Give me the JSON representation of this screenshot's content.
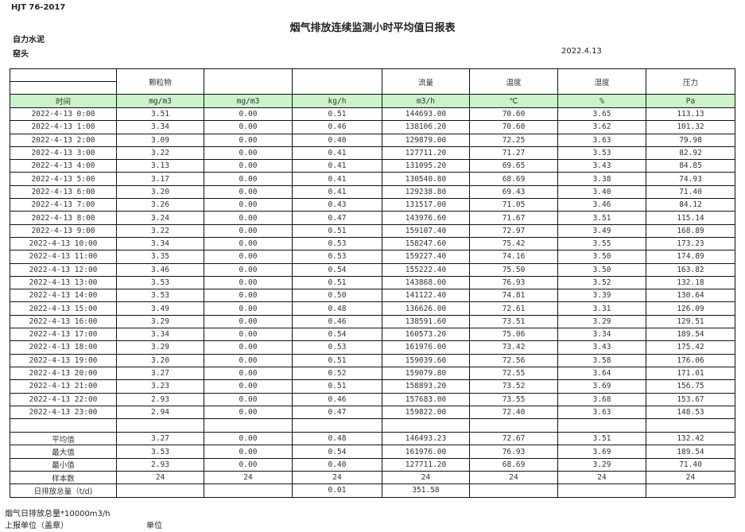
{
  "header": {
    "standard": "HJT  76-2017",
    "title": "烟气排放连续监测小时平均值日报表",
    "company": "自力水泥",
    "kiln": "窑头",
    "date": "2022.4.13"
  },
  "columns": [
    "颗粒物",
    "",
    "",
    "流量",
    "温度",
    "湿度",
    "压力"
  ],
  "units": [
    "时间",
    "mg/m3",
    "mg/m3",
    "kg/h",
    "m3/h",
    "℃",
    "%",
    "Pa"
  ],
  "rows": [
    [
      "2022-4-13 0:00",
      "3.51",
      "0.00",
      "0.51",
      "144693.00",
      "70.60",
      "3.65",
      "113.13"
    ],
    [
      "2022-4-13 1:00",
      "3.34",
      "0.00",
      "0.46",
      "138106.20",
      "70.60",
      "3.62",
      "101.32"
    ],
    [
      "2022-4-13 2:00",
      "3.09",
      "0.00",
      "0.40",
      "129879.00",
      "72.25",
      "3.63",
      "79.98"
    ],
    [
      "2022-4-13 3:00",
      "3.22",
      "0.00",
      "0.41",
      "127711.20",
      "71.27",
      "3.53",
      "82.92"
    ],
    [
      "2022-4-13 4:00",
      "3.13",
      "0.00",
      "0.41",
      "131095.20",
      "69.65",
      "3.43",
      "84.85"
    ],
    [
      "2022-4-13 5:00",
      "3.17",
      "0.00",
      "0.41",
      "130540.80",
      "68.69",
      "3.38",
      "74.93"
    ],
    [
      "2022-4-13 6:00",
      "3.20",
      "0.00",
      "0.41",
      "129238.80",
      "69.43",
      "3.40",
      "71.40"
    ],
    [
      "2022-4-13 7:00",
      "3.26",
      "0.00",
      "0.43",
      "131517.00",
      "71.05",
      "3.46",
      "84.12"
    ],
    [
      "2022-4-13 8:00",
      "3.24",
      "0.00",
      "0.47",
      "143976.60",
      "71.67",
      "3.51",
      "115.14"
    ],
    [
      "2022-4-13 9:00",
      "3.22",
      "0.00",
      "0.51",
      "159107.40",
      "72.97",
      "3.49",
      "168.89"
    ],
    [
      "2022-4-13 10:00",
      "3.34",
      "0.00",
      "0.53",
      "158247.60",
      "75.42",
      "3.55",
      "173.23"
    ],
    [
      "2022-4-13 11:00",
      "3.35",
      "0.00",
      "0.53",
      "159227.40",
      "74.16",
      "3.50",
      "174.89"
    ],
    [
      "2022-4-13 12:00",
      "3.46",
      "0.00",
      "0.54",
      "155222.40",
      "75.50",
      "3.50",
      "163.82"
    ],
    [
      "2022-4-13 13:00",
      "3.53",
      "0.00",
      "0.51",
      "143868.00",
      "76.93",
      "3.52",
      "132.18"
    ],
    [
      "2022-4-13 14:00",
      "3.53",
      "0.00",
      "0.50",
      "141122.40",
      "74.81",
      "3.39",
      "130.64"
    ],
    [
      "2022-4-13 15:00",
      "3.49",
      "0.00",
      "0.48",
      "136626.00",
      "72.61",
      "3.31",
      "126.09"
    ],
    [
      "2022-4-13 16:00",
      "3.29",
      "0.00",
      "0.46",
      "138591.60",
      "73.51",
      "3.29",
      "129.51"
    ],
    [
      "2022-4-13 17:00",
      "3.34",
      "0.00",
      "0.54",
      "160573.20",
      "75.06",
      "3.34",
      "189.54"
    ],
    [
      "2022-4-13 18:00",
      "3.29",
      "0.00",
      "0.53",
      "161976.00",
      "73.42",
      "3.43",
      "175.42"
    ],
    [
      "2022-4-13 19:00",
      "3.20",
      "0.00",
      "0.51",
      "159039.60",
      "72.56",
      "3.58",
      "176.06"
    ],
    [
      "2022-4-13 20:00",
      "3.27",
      "0.00",
      "0.52",
      "159079.80",
      "72.55",
      "3.64",
      "171.01"
    ],
    [
      "2022-4-13 21:00",
      "3.23",
      "0.00",
      "0.51",
      "158893.20",
      "73.52",
      "3.69",
      "156.75"
    ],
    [
      "2022-4-13 22:00",
      "2.93",
      "0.00",
      "0.46",
      "157683.00",
      "73.55",
      "3.68",
      "153.67"
    ],
    [
      "2022-4-13 23:00",
      "2.94",
      "0.00",
      "0.47",
      "159822.00",
      "72.40",
      "3.63",
      "148.53"
    ]
  ],
  "summary": [
    [
      "平均值",
      "3.27",
      "0.00",
      "0.48",
      "146493.23",
      "72.67",
      "3.51",
      "132.42"
    ],
    [
      "最大值",
      "3.53",
      "0.00",
      "0.54",
      "161976.00",
      "76.93",
      "3.69",
      "189.54"
    ],
    [
      "最小值",
      "2.93",
      "0.00",
      "0.40",
      "127711.20",
      "68.69",
      "3.29",
      "71.40"
    ],
    [
      "样本数",
      "24",
      "24",
      "24",
      "24",
      "24",
      "24",
      "24"
    ],
    [
      "日排放总量（t/d)",
      "",
      "",
      "0.01",
      "351.58",
      "",
      "",
      ""
    ]
  ],
  "footer": {
    "flue_total": "烟气日排放总量*10000m3/h",
    "reporter": "上报单位（盖章）",
    "unit": "单位"
  }
}
